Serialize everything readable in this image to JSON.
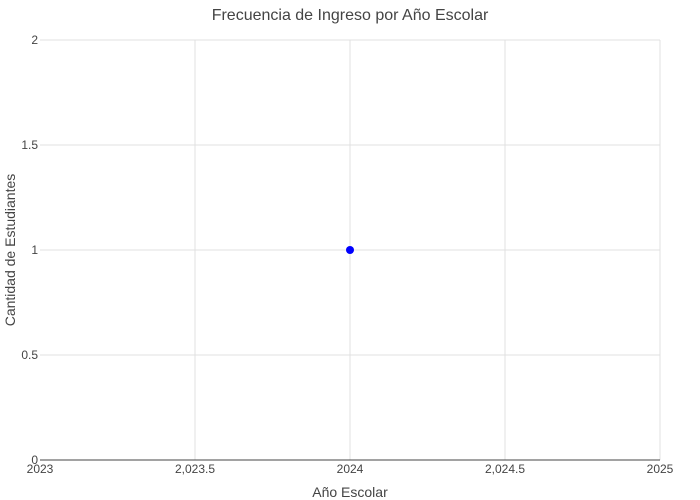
{
  "chart_data": {
    "type": "scatter",
    "title": "Frecuencia de Ingreso por Año Escolar",
    "xlabel": "Año Escolar",
    "ylabel": "Cantidad de Estudiantes",
    "xlim": [
      2023,
      2025
    ],
    "ylim": [
      0,
      2
    ],
    "x_ticks": [
      2023,
      2023.5,
      2024,
      2024.5,
      2025
    ],
    "x_tick_labels": [
      "2023",
      "2,023.5",
      "2024",
      "2,024.5",
      "2025"
    ],
    "y_ticks": [
      0,
      0.5,
      1,
      1.5,
      2
    ],
    "y_tick_labels": [
      "0",
      "0.5",
      "1",
      "1.5",
      "2"
    ],
    "grid": true,
    "series": [
      {
        "color": "#0000ff",
        "points": [
          {
            "x": 2024,
            "y": 1
          }
        ]
      }
    ]
  }
}
